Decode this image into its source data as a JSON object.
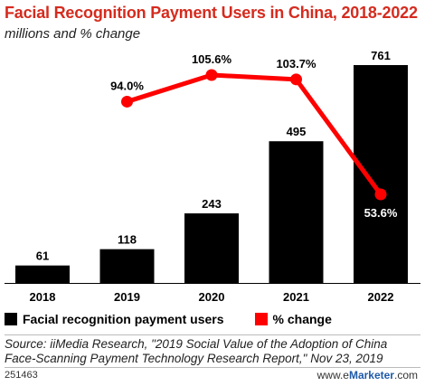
{
  "title": "Facial Recognition Payment Users in China, 2018-2022",
  "subtitle": "millions and % change",
  "chart_data": {
    "type": "bar",
    "categories": [
      "2018",
      "2019",
      "2020",
      "2021",
      "2022"
    ],
    "series": [
      {
        "name": "Facial recognition payment users",
        "type": "bar",
        "values": [
          61,
          118,
          243,
          495,
          761
        ],
        "labels": [
          "61",
          "118",
          "243",
          "495",
          "761"
        ],
        "color": "#000000"
      },
      {
        "name": "% change",
        "type": "line",
        "values": [
          null,
          94.0,
          105.6,
          103.7,
          53.6
        ],
        "labels": [
          "",
          "94.0%",
          "105.6%",
          "103.7%",
          "53.6%"
        ],
        "color": "#ff0000"
      }
    ],
    "ylim": [
      0,
      761
    ],
    "y2lim": [
      0,
      120
    ],
    "grid": false,
    "legend": "bottom-left"
  },
  "legend": [
    {
      "label": "Facial recognition payment users",
      "color": "#000000"
    },
    {
      "label": "% change",
      "color": "#ff0000"
    }
  ],
  "source": "Source: iiMedia Research, \"2019 Social Value of the Adoption of China Face-Scanning Payment Technology Research Report,\" Nov 23, 2019",
  "footer_id": "251463",
  "brand": {
    "prefix": "www.e",
    "name": "Marketer",
    "suffix": ".com"
  }
}
